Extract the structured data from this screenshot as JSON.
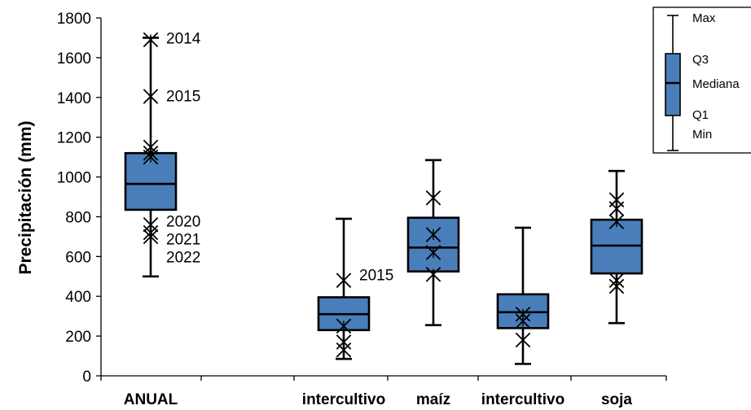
{
  "chart_data": {
    "type": "box",
    "ylabel": "Precipitación (mm)",
    "ylim": [
      0,
      1800
    ],
    "yticks": [
      0,
      200,
      400,
      600,
      800,
      1000,
      1200,
      1400,
      1600,
      1800
    ],
    "box_color": "#4a7ebb",
    "categories": [
      "ANUAL",
      "intercultivo",
      "maíz",
      "intercultivo",
      "soja"
    ],
    "boxes": [
      {
        "category": "ANUAL",
        "min": 500,
        "q1": 835,
        "median": 965,
        "q3": 1120,
        "max": 1700,
        "points": [
          1690,
          1405,
          1150,
          1120,
          1100,
          760,
          720,
          700
        ]
      },
      {
        "category": "intercultivo",
        "min": 85,
        "q1": 230,
        "median": 310,
        "q3": 395,
        "max": 790,
        "points": [
          480,
          250,
          170,
          130
        ]
      },
      {
        "category": "maíz",
        "min": 255,
        "q1": 525,
        "median": 645,
        "q3": 795,
        "max": 1085,
        "points": [
          895,
          710,
          620,
          510
        ]
      },
      {
        "category": "intercultivo",
        "min": 60,
        "q1": 240,
        "median": 320,
        "q3": 410,
        "max": 745,
        "points": [
          310,
          275,
          180
        ]
      },
      {
        "category": "soja",
        "min": 265,
        "q1": 515,
        "median": 655,
        "q3": 785,
        "max": 1030,
        "points": [
          885,
          840,
          775,
          480,
          450
        ]
      }
    ],
    "annotations": [
      {
        "text": "2014",
        "category_index": 0,
        "y": 1700
      },
      {
        "text": "2015",
        "category_index": 0,
        "y": 1410
      },
      {
        "text": "2020",
        "category_index": 0,
        "y": 780
      },
      {
        "text": "2021",
        "category_index": 0,
        "y": 690
      },
      {
        "text": "2022",
        "category_index": 0,
        "y": 600
      },
      {
        "text": "2015",
        "category_index": 1,
        "y": 510
      }
    ],
    "legend": {
      "placement": "top-right",
      "labels": [
        "Max",
        "Q3",
        "Mediana",
        "Q1",
        "Min"
      ]
    }
  }
}
